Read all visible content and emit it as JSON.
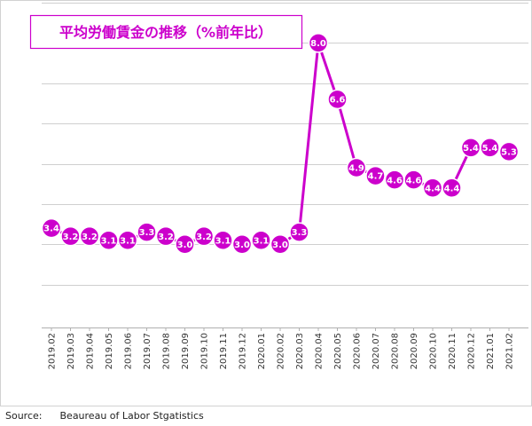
{
  "chart_data": {
    "type": "line",
    "title": "平均労働賃金の推移（%前年比）",
    "categories": [
      "2019.02",
      "2019.03",
      "2019.04",
      "2019.05",
      "2019.06",
      "2019.07",
      "2019.08",
      "2019.09",
      "2019.10",
      "2019.11",
      "2019.12",
      "2020.01",
      "2020.02",
      "2020.03",
      "2020.04",
      "2020.05",
      "2020.06",
      "2020.07",
      "2020.08",
      "2020.09",
      "2020.10",
      "2020.11",
      "2020.12",
      "2021.01",
      "2021.02"
    ],
    "series": [
      {
        "values": [
          3.4,
          3.2,
          3.2,
          3.1,
          3.1,
          3.3,
          3.2,
          3.0,
          3.2,
          3.1,
          3.0,
          3.1,
          3.0,
          3.3,
          8.0,
          6.6,
          4.9,
          4.7,
          4.6,
          4.6,
          4.4,
          4.4,
          5.4,
          5.4,
          5.3
        ]
      }
    ],
    "ylim": [
      1.0,
      9.0
    ],
    "grid": true,
    "colors": {
      "line": "#cc00cc",
      "marker": "#cc00cc",
      "label": "#ffffff",
      "title_border": "#cc00cc",
      "title_text": "#cc00cc",
      "grid": "#cfcfcf"
    }
  },
  "source": {
    "label": "Source:",
    "text": "Beaureau of Labor Stgatistics"
  }
}
